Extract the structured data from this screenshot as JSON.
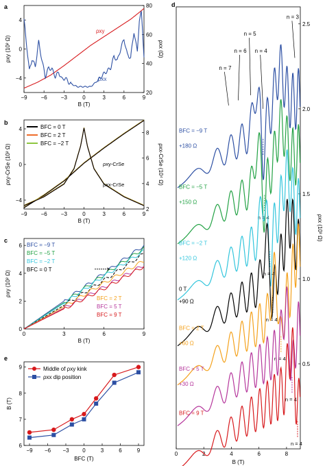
{
  "panels": {
    "a": "a",
    "b": "b",
    "c": "c",
    "d": "d",
    "e": "e"
  },
  "chart_data": [
    {
      "id": "a",
      "type": "line",
      "xlabel": "B (T)",
      "ylabel_left": "ρxy (10² Ω)",
      "ylabel_right": "ρxx (Ω)",
      "xlim": [
        -9,
        9
      ],
      "ylim_left": [
        -6,
        6
      ],
      "ylim_right": [
        20,
        80
      ],
      "x_ticks": [
        "-9",
        "-6",
        "-3",
        "0",
        "3",
        "6",
        "9"
      ],
      "y_left_ticks": [
        "-4",
        "0",
        "4"
      ],
      "y_right_ticks": [
        "20",
        "40",
        "60",
        "80"
      ],
      "colors": {
        "rho_xy": "#d7191c",
        "rho_xx": "#2c4fa3"
      },
      "series": [
        {
          "name": "ρxy",
          "axis": "left",
          "x": [
            -9,
            -7,
            -5,
            -3,
            -1,
            0,
            1,
            3,
            5,
            7,
            8.5,
            9
          ],
          "y": [
            -5.4,
            -4.6,
            -3.6,
            -2.3,
            -0.9,
            -0.2,
            0.5,
            1.7,
            2.9,
            4.1,
            5.2,
            5.6
          ]
        },
        {
          "name": "ρxx",
          "axis": "right",
          "x": [
            -9,
            -8.7,
            -8.2,
            -7.8,
            -7.3,
            -6.8,
            -6.3,
            -5.8,
            -5.3,
            -4.8,
            -4.3,
            -3.8,
            -3.3,
            -2.8,
            -2.3,
            -1.5,
            -1,
            0,
            1,
            2,
            3,
            3.5,
            4,
            4.5,
            5,
            5.5,
            6,
            6.5,
            7,
            7.5,
            8,
            8.3,
            8.6,
            8.8,
            9
          ],
          "y": [
            70,
            57,
            35,
            43,
            38,
            55,
            42,
            31,
            37,
            36,
            31,
            34,
            29,
            30,
            27,
            25,
            24,
            24,
            24,
            28,
            33,
            35,
            37,
            45,
            42,
            50,
            57,
            46,
            44,
            62,
            48,
            70,
            75,
            62,
            45
          ]
        }
      ],
      "labels": [
        "ρxy",
        "ρxx"
      ]
    },
    {
      "id": "b",
      "type": "line",
      "xlabel": "B (T)",
      "ylabel_left": "ρxy-CrSe (10² Ω)",
      "ylabel_right": "ρxx-CrSe (10⁴ Ω)",
      "xlim": [
        -9,
        9
      ],
      "ylim_left": [
        -5,
        5
      ],
      "ylim_right": [
        2,
        9
      ],
      "x_ticks": [
        "-9",
        "-6",
        "-3",
        "0",
        "3",
        "6",
        "9"
      ],
      "y_left_ticks": [
        "-4",
        "0",
        "4"
      ],
      "y_right_ticks": [
        "2",
        "4",
        "6",
        "8"
      ],
      "legend": [
        {
          "label": "BFC = 0 T",
          "color": "#000000"
        },
        {
          "label": "BFC = 2 T",
          "color": "#ef6c2a"
        },
        {
          "label": "BFC = −2 T",
          "color": "#8dc63f"
        }
      ],
      "annotations": [
        "ρxy-CrSe",
        "ρxx-CrSe"
      ],
      "series": [
        {
          "name": "ρxy-CrSe",
          "axis": "left",
          "x": [
            -9,
            -6,
            -3,
            0,
            3,
            6,
            9
          ],
          "y": [
            -4.8,
            -3.4,
            -1.8,
            0.2,
            1.9,
            3.5,
            5.0
          ]
        },
        {
          "name": "ρxx-CrSe",
          "axis": "right",
          "x": [
            -9,
            -6,
            -3,
            -1.5,
            -0.5,
            0,
            0.5,
            1.5,
            3,
            6,
            9
          ],
          "y": [
            2.3,
            3.0,
            4.0,
            5.2,
            7.0,
            8.4,
            7.0,
            5.2,
            4.0,
            3.0,
            2.3
          ]
        }
      ]
    },
    {
      "id": "c",
      "type": "line",
      "xlabel": "B (T)",
      "ylabel": "ρxy (10² Ω)",
      "xlim": [
        0,
        9
      ],
      "ylim": [
        0,
        6.5
      ],
      "x_ticks": [
        "0",
        "3",
        "6",
        "9"
      ],
      "y_ticks": [
        "0",
        "2",
        "4",
        "6"
      ],
      "legend": [
        {
          "label": "BFC = −9 T",
          "color": "#2c4fa3"
        },
        {
          "label": "BFC = −5 T",
          "color": "#21a143"
        },
        {
          "label": "BFC = −2 T",
          "color": "#32c5dc"
        },
        {
          "label": "BFC = 0 T",
          "color": "#000000"
        },
        {
          "label": "BFC = 2 T",
          "color": "#f4a11b"
        },
        {
          "label": "BFC = 5 T",
          "color": "#b5359b"
        },
        {
          "label": "BFC = 9 T",
          "color": "#d7191c"
        }
      ],
      "series": [
        {
          "name": "BFC = −9 T",
          "x": [
            0,
            3,
            6,
            9
          ],
          "y": [
            0,
            2.0,
            4.0,
            6.0
          ]
        },
        {
          "name": "BFC = −5 T",
          "x": [
            0,
            3,
            6,
            9
          ],
          "y": [
            0,
            1.9,
            3.9,
            5.8
          ]
        },
        {
          "name": "BFC = −2 T",
          "x": [
            0,
            3,
            6,
            9
          ],
          "y": [
            0,
            1.85,
            3.8,
            5.6
          ]
        },
        {
          "name": "BFC = 0 T",
          "x": [
            0,
            3,
            6,
            9
          ],
          "y": [
            0,
            1.7,
            3.5,
            5.4
          ]
        },
        {
          "name": "BFC = 2 T",
          "x": [
            0,
            3,
            6,
            9
          ],
          "y": [
            0,
            1.6,
            3.3,
            4.9
          ]
        },
        {
          "name": "BFC = 5 T",
          "x": [
            0,
            3,
            6,
            9
          ],
          "y": [
            0,
            1.5,
            3.0,
            4.6
          ]
        },
        {
          "name": "BFC = 9 T",
          "x": [
            0,
            3,
            6,
            9
          ],
          "y": [
            0,
            1.45,
            2.9,
            4.5
          ]
        }
      ]
    },
    {
      "id": "e",
      "type": "line",
      "xlabel": "BFC (T)",
      "ylabel": "B (T)",
      "xlim": [
        -9,
        9
      ],
      "ylim": [
        6,
        9.2
      ],
      "x_ticks": [
        "-9",
        "-6",
        "-3",
        "0",
        "3",
        "6",
        "9"
      ],
      "y_ticks": [
        "6",
        "7",
        "8",
        "9"
      ],
      "x": [
        -9,
        -5,
        -2,
        0,
        2,
        5,
        9
      ],
      "series": [
        {
          "name": "Middle of ρxy kink",
          "marker": "circle",
          "color": "#d7191c",
          "values": [
            6.5,
            6.6,
            7.0,
            7.2,
            7.8,
            8.7,
            9.0
          ]
        },
        {
          "name": "ρxx dip position",
          "marker": "square",
          "color": "#2c4fa3",
          "values": [
            6.3,
            6.4,
            6.8,
            7.0,
            7.6,
            8.4,
            8.8
          ]
        }
      ]
    },
    {
      "id": "d",
      "type": "line",
      "xlabel": "B (T)",
      "ylabel": "ρxx (10³ Ω)",
      "xlim": [
        0,
        9
      ],
      "ylim": [
        0,
        2.6
      ],
      "x_ticks": [
        "0",
        "2",
        "4",
        "6",
        "8"
      ],
      "y_ticks": [
        "0.5",
        "1.0",
        "1.5",
        "2.0",
        "2.5"
      ],
      "landau_labels": [
        "n = 7",
        "n = 6",
        "n = 5",
        "n = 4",
        "n = 3"
      ],
      "series": [
        {
          "name": "BFC = −9 T",
          "label": "BFC = −9 T",
          "offset": "+180 Ω",
          "color": "#2c4fa3",
          "dip": 6.3,
          "base": 1.88
        },
        {
          "name": "BFC = −5 T",
          "label": "BFC = −5 T",
          "offset": "+150 Ω",
          "color": "#21a143",
          "dip": 6.4,
          "base": 1.55,
          "n_label": "n = 4"
        },
        {
          "name": "BFC = −2 T",
          "label": "BFC = −2 T",
          "offset": "+120 Ω",
          "color": "#32c5dc",
          "dip": 6.8,
          "base": 1.22,
          "n_label": "n = 4"
        },
        {
          "name": "BFC = 0 T",
          "label": "0 T",
          "offset": "+90 Ω",
          "color": "#000000",
          "dip": 7.0,
          "base": 0.95,
          "n_label": "n = 4"
        },
        {
          "name": "BFC = 2 T",
          "label": "BFC = 2 T",
          "offset": "+60 Ω",
          "color": "#f4a11b",
          "dip": 7.6,
          "base": 0.72,
          "n_label": "n = 4"
        },
        {
          "name": "BFC = 5 T",
          "label": "BFC = 5 T",
          "offset": "+30 Ω",
          "color": "#b5359b",
          "dip": 8.4,
          "base": 0.48,
          "n_label": "n = 4"
        },
        {
          "name": "BFC = 9 T",
          "label": "BFC = 9 T",
          "offset": "",
          "color": "#d7191c",
          "dip": 8.8,
          "base": 0.22,
          "n_label": "n = 4"
        }
      ]
    }
  ]
}
